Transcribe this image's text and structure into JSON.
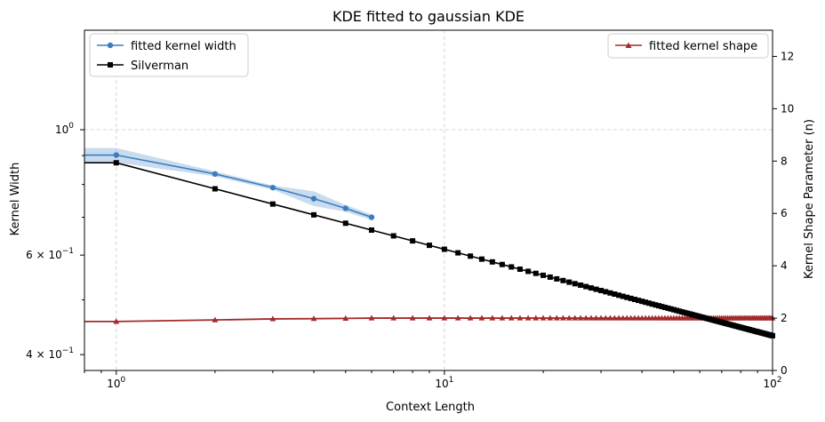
{
  "chart_data": {
    "type": "line",
    "title": "KDE fitted to gaussian KDE",
    "xlabel": "Context Length",
    "ylabel": "Kernel Width",
    "y2label": "Kernel Shape Parameter (n)",
    "xscale": "log",
    "yscale": "log",
    "xlim": [
      0.8,
      100
    ],
    "ylim": [
      0.375,
      1.5
    ],
    "y2lim": [
      0,
      13
    ],
    "grid": true,
    "x_ticks": [
      {
        "value": 1,
        "base": "10",
        "exp": "0"
      },
      {
        "value": 10,
        "base": "10",
        "exp": "1"
      },
      {
        "value": 100,
        "base": "10",
        "exp": "2"
      }
    ],
    "y_ticks": [
      {
        "value": 1.0,
        "base": "10",
        "exp": "0",
        "prefix": ""
      },
      {
        "value": 0.6,
        "base": "10",
        "exp": "−1",
        "prefix": "6 × "
      },
      {
        "value": 0.4,
        "base": "10",
        "exp": "−1",
        "prefix": "4 × "
      }
    ],
    "y2_ticks": [
      "0",
      "2",
      "4",
      "6",
      "8",
      "10",
      "12"
    ],
    "legend_left": {
      "placement": "upper-left",
      "entries": [
        "fitted kernel width",
        "Silverman"
      ]
    },
    "legend_right": {
      "placement": "upper-right",
      "entries": [
        "fitted kernel shape"
      ]
    },
    "series": [
      {
        "name": "fitted kernel width",
        "axis": "left",
        "color": "#3a7ebf",
        "marker": "circle",
        "x": [
          1,
          2,
          3,
          4,
          5,
          6
        ],
        "y": [
          0.902,
          0.835,
          0.79,
          0.755,
          0.726,
          0.7
        ],
        "band_low": [
          0.875,
          0.827,
          0.783,
          0.733,
          0.716,
          0.692
        ],
        "band_high": [
          0.928,
          0.844,
          0.797,
          0.778,
          0.736,
          0.708
        ]
      },
      {
        "name": "Silverman",
        "axis": "left",
        "color": "#000000",
        "marker": "square",
        "x_start": 1,
        "x_end": 100,
        "y_at_1": 0.874,
        "y_at_100": 0.432
      },
      {
        "name": "fitted kernel shape",
        "axis": "right",
        "color": "#a52a2a",
        "marker": "triangle",
        "x_start": 1,
        "x_end": 100,
        "y_values_head": [
          1.87,
          1.93,
          1.97,
          1.98,
          1.99
        ],
        "y_plateau": 2.0
      }
    ]
  }
}
